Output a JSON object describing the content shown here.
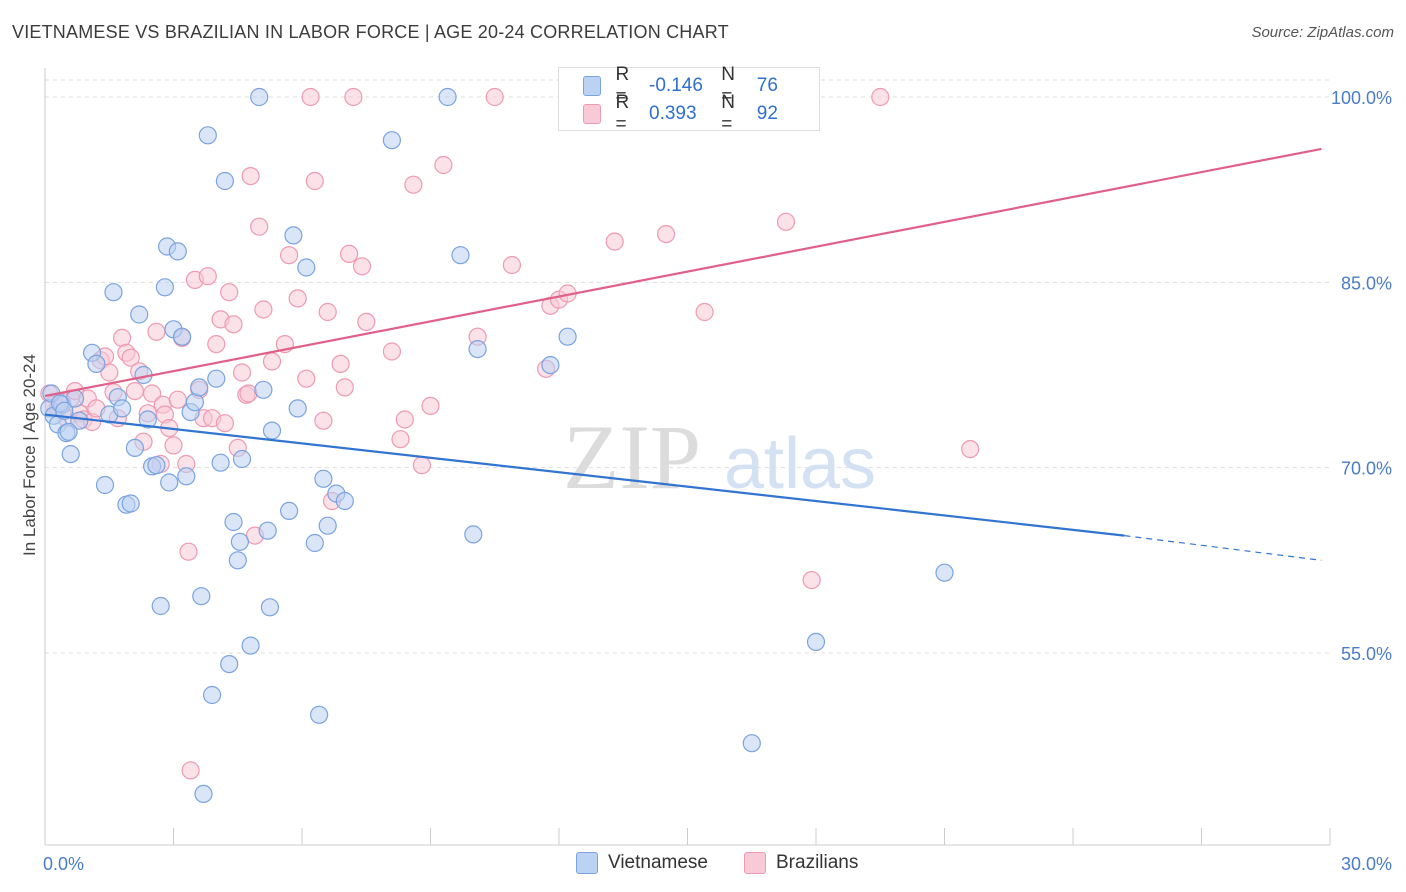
{
  "title": "VIETNAMESE VS BRAZILIAN IN LABOR FORCE | AGE 20-24 CORRELATION CHART",
  "source": "Source: ZipAtlas.com",
  "watermark": {
    "zip": "ZIP",
    "atlas": "atlas"
  },
  "legend": {
    "rows": [
      {
        "r_label": "R =",
        "r_value": "-0.146",
        "n_label": "N =",
        "n_value": "76",
        "fill": "#bcd2f3",
        "stroke": "#7aa3e0"
      },
      {
        "r_label": "R =",
        "r_value": "0.393",
        "n_label": "N =",
        "n_value": "92",
        "fill": "#f8c9d6",
        "stroke": "#ee9ab2"
      }
    ]
  },
  "chart_data": {
    "type": "scatter",
    "title": "VIETNAMESE VS BRAZILIAN IN LABOR FORCE | AGE 20-24 CORRELATION CHART",
    "xlabel": "",
    "ylabel": "In Labor Force | Age 20-24",
    "xlim": [
      0,
      30
    ],
    "ylim": [
      41,
      102
    ],
    "x_tick_labels": [
      "0.0%",
      "30.0%"
    ],
    "y_ticks": [
      {
        "value": 55,
        "label": "55.0%"
      },
      {
        "value": 70,
        "label": "70.0%"
      },
      {
        "value": 85,
        "label": "85.0%"
      },
      {
        "value": 100,
        "label": "100.0%"
      }
    ],
    "grid": true,
    "legend_position": "top-center",
    "series": [
      {
        "name": "Vietnamese",
        "color": "#7aa3e0",
        "fill": "#bcd2f3",
        "line_color": "#3274d1",
        "trend": {
          "x0": 0,
          "y0": 74.3,
          "x1": 25.2,
          "y1": 64.5,
          "x_dash_end": 29.8,
          "y_dash_end": 62.5
        },
        "points": [
          [
            0.1,
            74.8
          ],
          [
            0.2,
            74.2
          ],
          [
            0.3,
            73.5
          ],
          [
            0.4,
            75.1
          ],
          [
            0.5,
            72.8
          ],
          [
            0.6,
            71.1
          ],
          [
            0.7,
            75.6
          ],
          [
            0.8,
            73.8
          ],
          [
            1.1,
            79.3
          ],
          [
            1.2,
            78.4
          ],
          [
            1.4,
            68.6
          ],
          [
            1.5,
            74.3
          ],
          [
            1.6,
            84.2
          ],
          [
            1.7,
            75.7
          ],
          [
            1.8,
            74.8
          ],
          [
            1.9,
            67.0
          ],
          [
            2.0,
            67.1
          ],
          [
            2.1,
            71.6
          ],
          [
            2.2,
            82.4
          ],
          [
            2.3,
            77.5
          ],
          [
            2.4,
            73.9
          ],
          [
            2.5,
            70.1
          ],
          [
            2.6,
            70.2
          ],
          [
            2.7,
            58.8
          ],
          [
            2.8,
            84.6
          ],
          [
            2.85,
            87.9
          ],
          [
            2.9,
            68.8
          ],
          [
            3.0,
            81.2
          ],
          [
            3.1,
            87.5
          ],
          [
            3.2,
            80.6
          ],
          [
            3.3,
            69.3
          ],
          [
            3.4,
            74.5
          ],
          [
            3.5,
            75.3
          ],
          [
            3.6,
            76.5
          ],
          [
            3.65,
            59.6
          ],
          [
            3.7,
            43.6
          ],
          [
            3.8,
            96.9
          ],
          [
            3.9,
            51.6
          ],
          [
            4.0,
            77.2
          ],
          [
            4.1,
            70.4
          ],
          [
            4.2,
            93.2
          ],
          [
            4.3,
            54.1
          ],
          [
            4.4,
            65.6
          ],
          [
            4.5,
            62.5
          ],
          [
            4.55,
            64.0
          ],
          [
            4.6,
            70.7
          ],
          [
            4.8,
            55.6
          ],
          [
            5.0,
            100.0
          ],
          [
            5.1,
            76.3
          ],
          [
            5.2,
            64.9
          ],
          [
            5.25,
            58.7
          ],
          [
            5.3,
            73.0
          ],
          [
            5.7,
            66.5
          ],
          [
            5.8,
            88.8
          ],
          [
            5.9,
            74.8
          ],
          [
            6.1,
            86.2
          ],
          [
            6.3,
            63.9
          ],
          [
            6.4,
            50.0
          ],
          [
            6.5,
            69.1
          ],
          [
            6.6,
            65.3
          ],
          [
            6.8,
            67.9
          ],
          [
            7.0,
            67.3
          ],
          [
            8.1,
            96.5
          ],
          [
            9.4,
            100.0
          ],
          [
            9.7,
            87.2
          ],
          [
            10.0,
            64.6
          ],
          [
            10.1,
            79.6
          ],
          [
            11.8,
            78.3
          ],
          [
            12.2,
            80.6
          ],
          [
            16.5,
            47.7
          ],
          [
            18.0,
            55.9
          ],
          [
            21.0,
            61.5
          ],
          [
            0.15,
            76.0
          ],
          [
            0.35,
            75.2
          ],
          [
            0.45,
            74.6
          ],
          [
            0.55,
            72.9
          ]
        ]
      },
      {
        "name": "Brazilians",
        "color": "#ee9ab2",
        "fill": "#f8c9d6",
        "line_color": "#e0608a",
        "trend": {
          "x0": 0,
          "y0": 75.8,
          "x1": 29.8,
          "y1": 95.8
        },
        "points": [
          [
            0.1,
            76.0
          ],
          [
            0.2,
            75.1
          ],
          [
            0.3,
            74.8
          ],
          [
            0.4,
            75.3
          ],
          [
            0.5,
            74.0
          ],
          [
            0.6,
            75.6
          ],
          [
            0.7,
            76.2
          ],
          [
            0.8,
            74.4
          ],
          [
            0.9,
            73.9
          ],
          [
            1.0,
            75.6
          ],
          [
            1.1,
            73.7
          ],
          [
            1.2,
            74.8
          ],
          [
            1.3,
            78.7
          ],
          [
            1.4,
            79.0
          ],
          [
            1.5,
            77.7
          ],
          [
            1.6,
            76.1
          ],
          [
            1.7,
            74.0
          ],
          [
            1.8,
            80.5
          ],
          [
            1.9,
            79.3
          ],
          [
            2.0,
            78.9
          ],
          [
            2.1,
            76.2
          ],
          [
            2.2,
            77.8
          ],
          [
            2.3,
            72.1
          ],
          [
            2.4,
            74.4
          ],
          [
            2.5,
            76.0
          ],
          [
            2.6,
            81.0
          ],
          [
            2.7,
            70.3
          ],
          [
            2.75,
            75.1
          ],
          [
            2.8,
            74.3
          ],
          [
            2.9,
            73.2
          ],
          [
            3.0,
            71.8
          ],
          [
            3.1,
            75.5
          ],
          [
            3.2,
            80.5
          ],
          [
            3.3,
            70.3
          ],
          [
            3.35,
            63.2
          ],
          [
            3.4,
            45.5
          ],
          [
            3.5,
            85.2
          ],
          [
            3.6,
            76.3
          ],
          [
            3.7,
            74.0
          ],
          [
            3.8,
            85.5
          ],
          [
            3.9,
            74.0
          ],
          [
            4.0,
            80.0
          ],
          [
            4.1,
            82.0
          ],
          [
            4.2,
            73.6
          ],
          [
            4.3,
            84.2
          ],
          [
            4.4,
            81.6
          ],
          [
            4.5,
            71.6
          ],
          [
            4.6,
            77.7
          ],
          [
            4.7,
            75.9
          ],
          [
            4.75,
            76.0
          ],
          [
            4.8,
            93.6
          ],
          [
            4.9,
            64.5
          ],
          [
            5.0,
            89.5
          ],
          [
            5.1,
            82.8
          ],
          [
            5.3,
            78.6
          ],
          [
            5.6,
            80.0
          ],
          [
            5.7,
            87.2
          ],
          [
            5.9,
            83.7
          ],
          [
            6.1,
            77.2
          ],
          [
            6.2,
            100.0
          ],
          [
            6.3,
            93.2
          ],
          [
            6.5,
            73.8
          ],
          [
            6.6,
            82.6
          ],
          [
            6.7,
            67.3
          ],
          [
            6.9,
            78.4
          ],
          [
            7.0,
            76.5
          ],
          [
            7.1,
            87.3
          ],
          [
            7.2,
            100.0
          ],
          [
            7.4,
            86.3
          ],
          [
            7.5,
            81.8
          ],
          [
            8.1,
            79.4
          ],
          [
            8.3,
            72.3
          ],
          [
            8.4,
            73.9
          ],
          [
            8.6,
            92.9
          ],
          [
            8.8,
            70.2
          ],
          [
            9.0,
            75.0
          ],
          [
            9.3,
            94.5
          ],
          [
            10.1,
            80.6
          ],
          [
            10.5,
            100.0
          ],
          [
            10.9,
            86.4
          ],
          [
            11.7,
            78.0
          ],
          [
            11.8,
            83.1
          ],
          [
            12.0,
            83.6
          ],
          [
            12.2,
            84.1
          ],
          [
            13.3,
            88.3
          ],
          [
            14.5,
            88.9
          ],
          [
            15.0,
            100.0
          ],
          [
            15.4,
            82.6
          ],
          [
            17.3,
            89.9
          ],
          [
            17.9,
            60.9
          ],
          [
            19.5,
            100.0
          ],
          [
            21.6,
            71.5
          ]
        ]
      }
    ]
  },
  "bottom_legend": {
    "items": [
      {
        "label": "Vietnamese",
        "fill": "#bcd2f3",
        "stroke": "#7aa3e0"
      },
      {
        "label": "Brazilians",
        "fill": "#f8c9d6",
        "stroke": "#ee9ab2"
      }
    ]
  }
}
